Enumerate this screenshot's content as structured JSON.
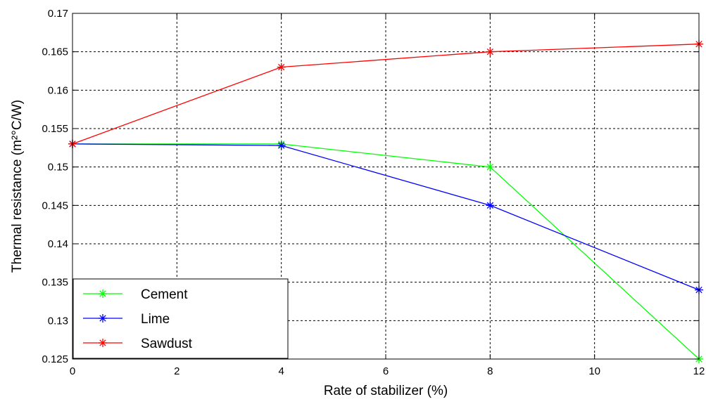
{
  "chart_data": {
    "type": "line",
    "title": "",
    "xlabel": "Rate of stabilizer (%)",
    "ylabel": "Thermal resistance (m²°C/W)",
    "xlim": [
      0,
      12
    ],
    "ylim": [
      0.125,
      0.17
    ],
    "x_ticks": [
      "0",
      "2",
      "4",
      "6",
      "8",
      "10",
      "12"
    ],
    "y_ticks": [
      "0.125",
      "0.13",
      "0.135",
      "0.14",
      "0.145",
      "0.15",
      "0.155",
      "0.16",
      "0.165",
      "0.17"
    ],
    "grid": true,
    "legend_position": "bottom-left",
    "x": [
      0,
      4,
      8,
      12
    ],
    "series": [
      {
        "name": "Cement",
        "color": "#00ff00",
        "marker": "star",
        "values": [
          0.153,
          0.153,
          0.15,
          0.125
        ]
      },
      {
        "name": "Lime",
        "color": "#0000ff",
        "marker": "star",
        "values": [
          0.153,
          0.1528,
          0.145,
          0.134
        ]
      },
      {
        "name": "Sawdust",
        "color": "#ff0000",
        "marker": "star",
        "values": [
          0.153,
          0.163,
          0.165,
          0.166
        ]
      }
    ]
  }
}
